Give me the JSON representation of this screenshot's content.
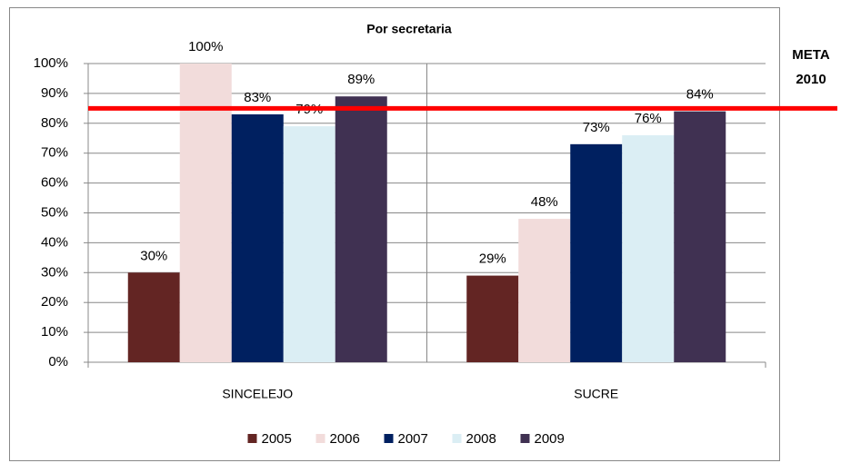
{
  "chart_data": {
    "type": "bar",
    "title": "Por secretaria",
    "categories": [
      "SINCELEJO",
      "SUCRE"
    ],
    "series": [
      {
        "name": "2005",
        "color": "#632523",
        "values": [
          30,
          29
        ],
        "value_labels": [
          "30%",
          "29%"
        ]
      },
      {
        "name": "2006",
        "color": "#f2dcdb",
        "values": [
          100,
          48
        ],
        "value_labels": [
          "100%",
          "48%"
        ]
      },
      {
        "name": "2007",
        "color": "#002060",
        "values": [
          83,
          73
        ],
        "value_labels": [
          "83%",
          "73%"
        ]
      },
      {
        "name": "2008",
        "color": "#dbeef4",
        "values": [
          79,
          76
        ],
        "value_labels": [
          "79%",
          "76%"
        ]
      },
      {
        "name": "2009",
        "color": "#403152",
        "values": [
          89,
          84
        ],
        "value_labels": [
          "89%",
          "84%"
        ]
      }
    ],
    "ylim": [
      0,
      100
    ],
    "yticks": [
      {
        "value": 0,
        "label": "0%"
      },
      {
        "value": 10,
        "label": "10%"
      },
      {
        "value": 20,
        "label": "20%"
      },
      {
        "value": 30,
        "label": "30%"
      },
      {
        "value": 40,
        "label": "40%"
      },
      {
        "value": 50,
        "label": "50%"
      },
      {
        "value": 60,
        "label": "60%"
      },
      {
        "value": 70,
        "label": "70%"
      },
      {
        "value": 80,
        "label": "80%"
      },
      {
        "value": 90,
        "label": "90%"
      },
      {
        "value": 100,
        "label": "100%"
      }
    ],
    "grid": true,
    "legend": "bottom",
    "reference_line": {
      "value": 85,
      "color": "#ff0000",
      "label": [
        "META",
        "2010"
      ]
    }
  }
}
